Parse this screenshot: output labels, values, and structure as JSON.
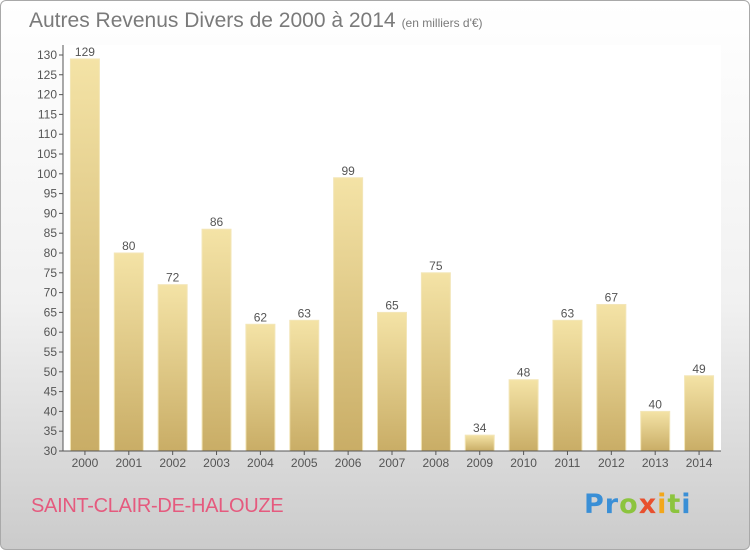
{
  "title": "Autres Revenus Divers de 2000 à 2014",
  "unit_note": "(en milliers d'€)",
  "commune": "SAINT-CLAIR-DE-HALOUZE",
  "logo": {
    "letters": [
      {
        "ch": "P",
        "color": "#3a8fd6"
      },
      {
        "ch": "r",
        "color": "#3a8fd6"
      },
      {
        "ch": "o",
        "color": "#8cc43e"
      },
      {
        "ch": "x",
        "color": "#e8502e"
      },
      {
        "ch": "i",
        "color": "#f2a71b"
      },
      {
        "ch": "t",
        "color": "#8cc43e"
      },
      {
        "ch": "i",
        "color": "#3a8fd6"
      }
    ]
  },
  "colors": {
    "bar_light": "#f4e3a6",
    "bar_dark": "#c9ad66",
    "text": "#555555",
    "title": "#7a7a7a",
    "commune": "#e55a7e"
  },
  "chart_data": {
    "type": "bar",
    "categories": [
      "2000",
      "2001",
      "2002",
      "2003",
      "2004",
      "2005",
      "2006",
      "2007",
      "2008",
      "2009",
      "2010",
      "2011",
      "2012",
      "2013",
      "2014"
    ],
    "values": [
      129,
      80,
      72,
      86,
      62,
      63,
      99,
      65,
      75,
      34,
      48,
      63,
      67,
      40,
      49
    ],
    "title": "Autres Revenus Divers de 2000 à 2014",
    "ylim": [
      30,
      130
    ],
    "yticks": [
      30,
      35,
      40,
      45,
      50,
      55,
      60,
      65,
      70,
      75,
      80,
      85,
      90,
      95,
      100,
      105,
      110,
      115,
      120,
      125,
      130
    ],
    "grid": false,
    "data_labels": true
  }
}
